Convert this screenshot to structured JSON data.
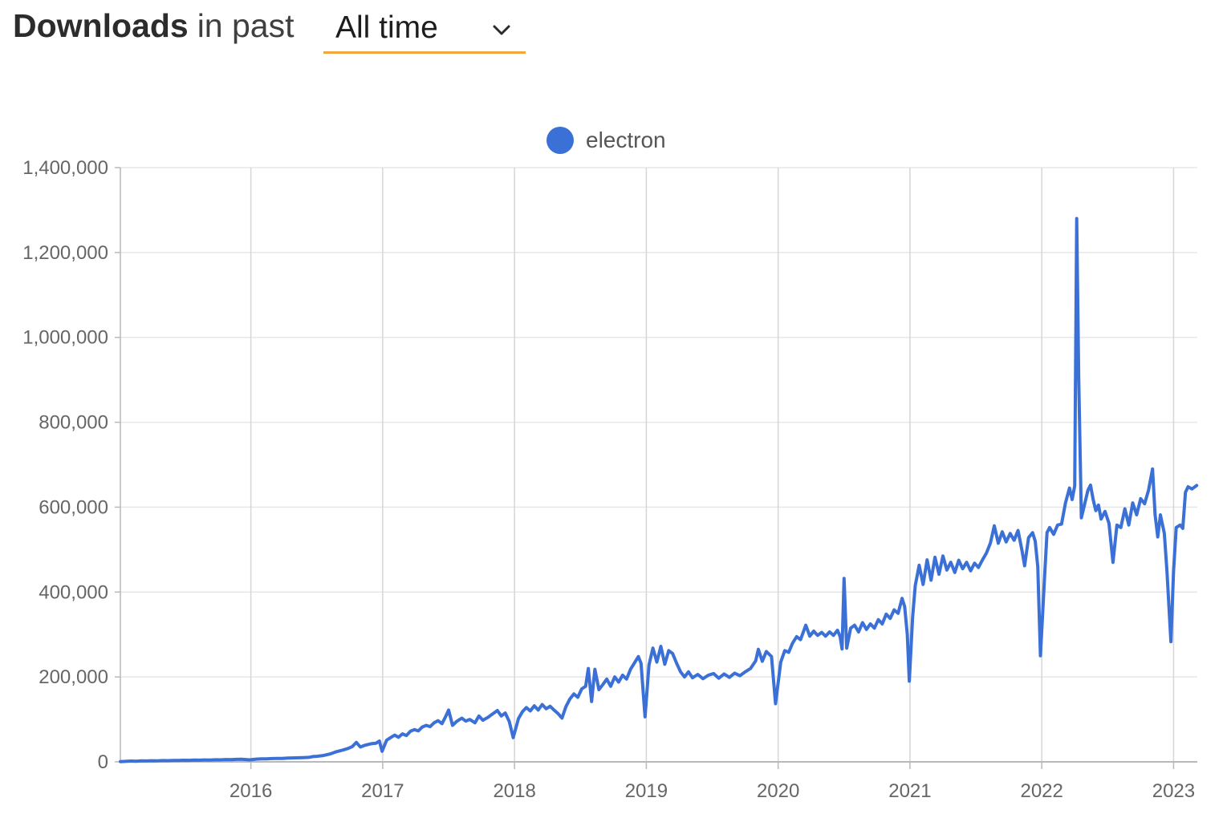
{
  "header": {
    "title_bold": "Downloads",
    "title_rest": "in past",
    "range_selector": {
      "value": "All time",
      "accent_color": "#F2A63C",
      "chevron_icon": "chevron-down"
    }
  },
  "legend": {
    "items": [
      {
        "label": "electron",
        "color": "#3B70D6",
        "marker": "circle"
      }
    ]
  },
  "chart_data": {
    "type": "line",
    "title": "Downloads in past All time",
    "xlabel": "",
    "ylabel": "",
    "x_unit": "year (fractional)",
    "y_unit": "downloads per week",
    "xlim": [
      2015.01,
      2023.18
    ],
    "ylim": [
      0,
      1400000
    ],
    "grid": true,
    "legend_position": "top-center",
    "x_ticks": [
      2016,
      2017,
      2018,
      2019,
      2020,
      2021,
      2022,
      2023
    ],
    "y_ticks": [
      0,
      200000,
      400000,
      600000,
      800000,
      1000000,
      1200000,
      1400000
    ],
    "y_tick_labels": [
      "0",
      "200,000",
      "400,000",
      "600,000",
      "800,000",
      "1,000,000",
      "1,200,000",
      "1,400,000"
    ],
    "series": [
      {
        "name": "electron",
        "color": "#3B70D6",
        "points": [
          [
            2015.01,
            500
          ],
          [
            2015.05,
            1200
          ],
          [
            2015.09,
            1800
          ],
          [
            2015.13,
            1500
          ],
          [
            2015.17,
            2200
          ],
          [
            2015.21,
            2000
          ],
          [
            2015.25,
            2600
          ],
          [
            2015.29,
            2400
          ],
          [
            2015.33,
            3000
          ],
          [
            2015.37,
            2800
          ],
          [
            2015.41,
            3400
          ],
          [
            2015.45,
            3200
          ],
          [
            2015.49,
            3800
          ],
          [
            2015.53,
            3600
          ],
          [
            2015.57,
            4200
          ],
          [
            2015.61,
            4000
          ],
          [
            2015.65,
            4600
          ],
          [
            2015.69,
            4400
          ],
          [
            2015.73,
            5000
          ],
          [
            2015.77,
            4800
          ],
          [
            2015.81,
            5400
          ],
          [
            2015.85,
            5200
          ],
          [
            2015.89,
            5800
          ],
          [
            2015.93,
            6000
          ],
          [
            2015.96,
            5500
          ],
          [
            2015.99,
            4800
          ],
          [
            2016.04,
            6500
          ],
          [
            2016.08,
            7200
          ],
          [
            2016.12,
            7000
          ],
          [
            2016.16,
            7800
          ],
          [
            2016.2,
            8200
          ],
          [
            2016.24,
            8000
          ],
          [
            2016.28,
            8800
          ],
          [
            2016.32,
            9200
          ],
          [
            2016.36,
            9600
          ],
          [
            2016.4,
            10000
          ],
          [
            2016.44,
            10500
          ],
          [
            2016.47,
            12500
          ],
          [
            2016.5,
            13000
          ],
          [
            2016.55,
            15000
          ],
          [
            2016.6,
            18500
          ],
          [
            2016.65,
            24000
          ],
          [
            2016.7,
            28000
          ],
          [
            2016.74,
            32000
          ],
          [
            2016.77,
            36000
          ],
          [
            2016.8,
            46000
          ],
          [
            2016.83,
            35000
          ],
          [
            2016.86,
            38500
          ],
          [
            2016.89,
            41000
          ],
          [
            2016.92,
            43000
          ],
          [
            2016.95,
            44000
          ],
          [
            2016.975,
            49000
          ],
          [
            2016.995,
            25000
          ],
          [
            2017.03,
            51000
          ],
          [
            2017.06,
            57000
          ],
          [
            2017.09,
            63000
          ],
          [
            2017.12,
            58000
          ],
          [
            2017.15,
            66000
          ],
          [
            2017.18,
            62000
          ],
          [
            2017.21,
            72000
          ],
          [
            2017.24,
            76000
          ],
          [
            2017.27,
            73000
          ],
          [
            2017.3,
            82000
          ],
          [
            2017.33,
            86000
          ],
          [
            2017.36,
            83000
          ],
          [
            2017.39,
            92000
          ],
          [
            2017.42,
            97000
          ],
          [
            2017.45,
            90000
          ],
          [
            2017.48,
            108000
          ],
          [
            2017.5,
            122000
          ],
          [
            2017.53,
            86000
          ],
          [
            2017.56,
            95000
          ],
          [
            2017.6,
            103000
          ],
          [
            2017.63,
            96000
          ],
          [
            2017.66,
            100000
          ],
          [
            2017.7,
            92000
          ],
          [
            2017.73,
            108000
          ],
          [
            2017.76,
            98000
          ],
          [
            2017.8,
            105000
          ],
          [
            2017.83,
            112000
          ],
          [
            2017.87,
            121000
          ],
          [
            2017.9,
            108000
          ],
          [
            2017.93,
            115000
          ],
          [
            2017.96,
            95000
          ],
          [
            2017.99,
            57000
          ],
          [
            2018.03,
            102000
          ],
          [
            2018.06,
            118000
          ],
          [
            2018.09,
            128000
          ],
          [
            2018.12,
            120000
          ],
          [
            2018.15,
            132000
          ],
          [
            2018.18,
            122000
          ],
          [
            2018.21,
            135000
          ],
          [
            2018.24,
            125000
          ],
          [
            2018.27,
            131000
          ],
          [
            2018.3,
            122000
          ],
          [
            2018.33,
            114000
          ],
          [
            2018.36,
            103000
          ],
          [
            2018.39,
            130000
          ],
          [
            2018.42,
            148000
          ],
          [
            2018.45,
            160000
          ],
          [
            2018.48,
            152000
          ],
          [
            2018.51,
            172000
          ],
          [
            2018.54,
            178000
          ],
          [
            2018.56,
            220000
          ],
          [
            2018.585,
            142000
          ],
          [
            2018.61,
            218000
          ],
          [
            2018.64,
            170000
          ],
          [
            2018.67,
            182000
          ],
          [
            2018.7,
            195000
          ],
          [
            2018.73,
            178000
          ],
          [
            2018.76,
            200000
          ],
          [
            2018.79,
            188000
          ],
          [
            2018.82,
            204000
          ],
          [
            2018.85,
            195000
          ],
          [
            2018.88,
            218000
          ],
          [
            2018.91,
            233000
          ],
          [
            2018.94,
            248000
          ],
          [
            2018.96,
            232000
          ],
          [
            2018.99,
            106000
          ],
          [
            2019.02,
            228000
          ],
          [
            2019.05,
            268000
          ],
          [
            2019.08,
            235000
          ],
          [
            2019.11,
            272000
          ],
          [
            2019.14,
            230000
          ],
          [
            2019.17,
            262000
          ],
          [
            2019.2,
            255000
          ],
          [
            2019.23,
            232000
          ],
          [
            2019.26,
            212000
          ],
          [
            2019.29,
            200000
          ],
          [
            2019.32,
            212000
          ],
          [
            2019.35,
            198000
          ],
          [
            2019.39,
            206000
          ],
          [
            2019.43,
            196000
          ],
          [
            2019.47,
            204000
          ],
          [
            2019.51,
            208000
          ],
          [
            2019.55,
            197000
          ],
          [
            2019.59,
            207000
          ],
          [
            2019.63,
            199000
          ],
          [
            2019.67,
            209000
          ],
          [
            2019.71,
            203000
          ],
          [
            2019.75,
            212000
          ],
          [
            2019.79,
            220000
          ],
          [
            2019.83,
            238000
          ],
          [
            2019.85,
            265000
          ],
          [
            2019.88,
            237000
          ],
          [
            2019.91,
            260000
          ],
          [
            2019.95,
            248000
          ],
          [
            2019.98,
            137000
          ],
          [
            2020.02,
            235000
          ],
          [
            2020.05,
            262000
          ],
          [
            2020.08,
            258000
          ],
          [
            2020.11,
            280000
          ],
          [
            2020.14,
            295000
          ],
          [
            2020.17,
            288000
          ],
          [
            2020.21,
            322000
          ],
          [
            2020.24,
            296000
          ],
          [
            2020.27,
            308000
          ],
          [
            2020.3,
            298000
          ],
          [
            2020.33,
            305000
          ],
          [
            2020.36,
            296000
          ],
          [
            2020.39,
            306000
          ],
          [
            2020.42,
            298000
          ],
          [
            2020.45,
            310000
          ],
          [
            2020.47,
            295000
          ],
          [
            2020.485,
            266000
          ],
          [
            2020.5,
            432000
          ],
          [
            2020.52,
            268000
          ],
          [
            2020.55,
            315000
          ],
          [
            2020.58,
            322000
          ],
          [
            2020.61,
            306000
          ],
          [
            2020.64,
            328000
          ],
          [
            2020.67,
            312000
          ],
          [
            2020.7,
            325000
          ],
          [
            2020.73,
            315000
          ],
          [
            2020.76,
            335000
          ],
          [
            2020.79,
            325000
          ],
          [
            2020.82,
            348000
          ],
          [
            2020.85,
            338000
          ],
          [
            2020.88,
            358000
          ],
          [
            2020.91,
            350000
          ],
          [
            2020.94,
            385000
          ],
          [
            2020.96,
            366000
          ],
          [
            2020.98,
            300000
          ],
          [
            2020.995,
            190000
          ],
          [
            2021.02,
            340000
          ],
          [
            2021.04,
            415000
          ],
          [
            2021.07,
            463000
          ],
          [
            2021.1,
            418000
          ],
          [
            2021.13,
            476000
          ],
          [
            2021.16,
            428000
          ],
          [
            2021.19,
            482000
          ],
          [
            2021.22,
            442000
          ],
          [
            2021.25,
            485000
          ],
          [
            2021.28,
            452000
          ],
          [
            2021.31,
            470000
          ],
          [
            2021.34,
            446000
          ],
          [
            2021.37,
            475000
          ],
          [
            2021.4,
            455000
          ],
          [
            2021.43,
            470000
          ],
          [
            2021.46,
            450000
          ],
          [
            2021.49,
            468000
          ],
          [
            2021.52,
            458000
          ],
          [
            2021.55,
            476000
          ],
          [
            2021.58,
            492000
          ],
          [
            2021.61,
            515000
          ],
          [
            2021.64,
            556000
          ],
          [
            2021.67,
            515000
          ],
          [
            2021.7,
            542000
          ],
          [
            2021.73,
            518000
          ],
          [
            2021.76,
            538000
          ],
          [
            2021.79,
            522000
          ],
          [
            2021.82,
            545000
          ],
          [
            2021.85,
            498000
          ],
          [
            2021.87,
            462000
          ],
          [
            2021.9,
            528000
          ],
          [
            2021.93,
            540000
          ],
          [
            2021.95,
            520000
          ],
          [
            2021.97,
            460000
          ],
          [
            2021.99,
            250000
          ],
          [
            2022.02,
            430000
          ],
          [
            2022.04,
            540000
          ],
          [
            2022.06,
            552000
          ],
          [
            2022.09,
            536000
          ],
          [
            2022.12,
            558000
          ],
          [
            2022.15,
            560000
          ],
          [
            2022.18,
            610000
          ],
          [
            2022.21,
            645000
          ],
          [
            2022.23,
            618000
          ],
          [
            2022.25,
            650000
          ],
          [
            2022.265,
            1280000
          ],
          [
            2022.28,
            905000
          ],
          [
            2022.3,
            575000
          ],
          [
            2022.32,
            600000
          ],
          [
            2022.35,
            640000
          ],
          [
            2022.37,
            652000
          ],
          [
            2022.39,
            618000
          ],
          [
            2022.41,
            592000
          ],
          [
            2022.43,
            605000
          ],
          [
            2022.45,
            572000
          ],
          [
            2022.48,
            590000
          ],
          [
            2022.51,
            562000
          ],
          [
            2022.54,
            470000
          ],
          [
            2022.57,
            558000
          ],
          [
            2022.6,
            552000
          ],
          [
            2022.63,
            596000
          ],
          [
            2022.66,
            558000
          ],
          [
            2022.69,
            610000
          ],
          [
            2022.72,
            582000
          ],
          [
            2022.75,
            620000
          ],
          [
            2022.78,
            608000
          ],
          [
            2022.81,
            640000
          ],
          [
            2022.84,
            690000
          ],
          [
            2022.86,
            582000
          ],
          [
            2022.88,
            530000
          ],
          [
            2022.9,
            582000
          ],
          [
            2022.93,
            538000
          ],
          [
            2022.95,
            448000
          ],
          [
            2022.98,
            283000
          ],
          [
            2023.0,
            450000
          ],
          [
            2023.02,
            552000
          ],
          [
            2023.05,
            558000
          ],
          [
            2023.07,
            550000
          ],
          [
            2023.09,
            635000
          ],
          [
            2023.11,
            648000
          ],
          [
            2023.14,
            643000
          ],
          [
            2023.175,
            651000
          ]
        ]
      }
    ],
    "annotations": {
      "peak_value": 1280000,
      "peak_time": 2022.265,
      "holiday_dips": [
        [
          2016.995,
          25000
        ],
        [
          2017.99,
          57000
        ],
        [
          2018.99,
          106000
        ],
        [
          2019.98,
          137000
        ],
        [
          2020.995,
          190000
        ],
        [
          2021.99,
          250000
        ],
        [
          2022.98,
          283000
        ]
      ]
    },
    "style": {
      "line_color": "#3B70D6",
      "h_gridline_color": "#E7E7E7",
      "v_gridline_color": "#D6D6D6",
      "axis_color": "#B9B9B9",
      "tick_label_color": "#666666"
    }
  }
}
